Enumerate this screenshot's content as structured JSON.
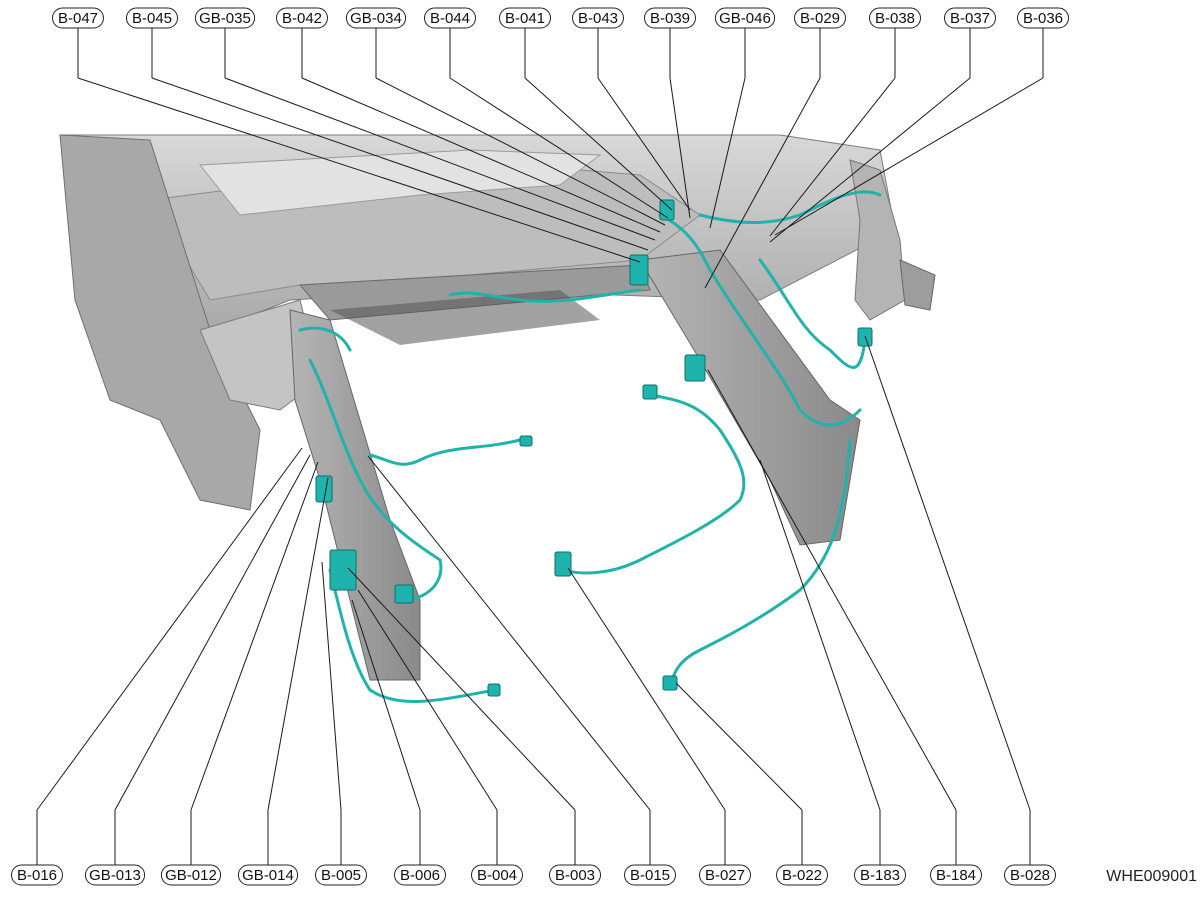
{
  "top_labels": [
    "B-047",
    "B-045",
    "GB-035",
    "B-042",
    "GB-034",
    "B-044",
    "B-041",
    "B-043",
    "B-039",
    "GB-046",
    "B-029",
    "B-038",
    "B-037",
    "B-036"
  ],
  "bottom_labels": [
    "B-016",
    "GB-013",
    "GB-012",
    "GB-014",
    "B-005",
    "B-006",
    "B-004",
    "B-003",
    "B-015",
    "B-027",
    "B-022",
    "B-183",
    "B-184",
    "B-028"
  ],
  "reference_code": "WHE009001",
  "colors": {
    "harness": "#1fb3ad",
    "body": "#c9c9c9",
    "body_dark": "#8f8f8f",
    "line": "#1a1a1a"
  }
}
